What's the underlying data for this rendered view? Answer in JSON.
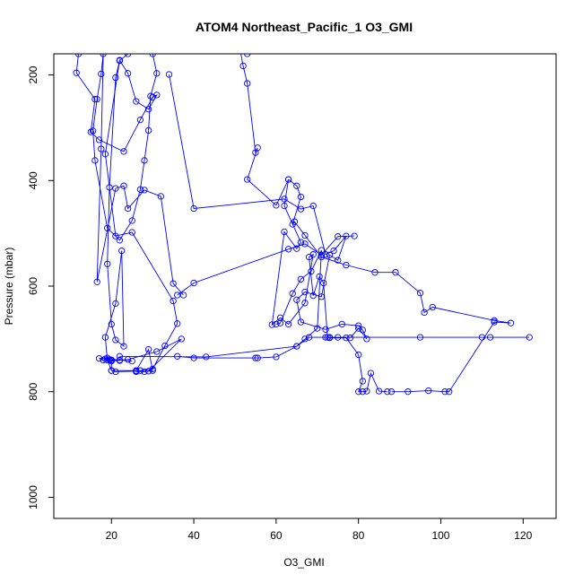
{
  "chart_data": {
    "type": "line",
    "title": "ATOM4 Northeast_Pacific_1 O3_GMI",
    "xlabel": "O3_GMI",
    "ylabel": "Pressure (mbar)",
    "xlim": [
      6,
      128
    ],
    "ylim": [
      1040,
      160
    ],
    "y_reversed": true,
    "grid": false,
    "xticks": [
      20,
      40,
      60,
      80,
      100,
      120
    ],
    "yticks": [
      200,
      400,
      600,
      800,
      1000
    ],
    "series_color": "#0000ff",
    "series": [
      {
        "x": [
          12,
          11.5,
          16,
          15,
          17,
          23,
          27,
          30,
          31,
          29,
          26,
          24,
          22,
          18.5,
          21,
          25,
          35,
          36,
          33,
          30,
          27,
          26,
          29,
          37,
          31,
          24,
          20,
          18.5,
          18,
          17,
          19,
          22,
          20,
          19.5
        ],
        "y": [
          160,
          196,
          246,
          308,
          323,
          345,
          285,
          242,
          238,
          265,
          250,
          197,
          172,
          350,
          505,
          498,
          628,
          671,
          713,
          757,
          760,
          762,
          761,
          700,
          724,
          739,
          742,
          738,
          740,
          737,
          736,
          741,
          740,
          739
        ]
      },
      {
        "x": [
          24,
          22,
          21,
          19.5,
          19,
          20,
          21,
          23,
          22.5,
          21,
          18.5,
          19,
          20,
          21,
          26,
          28,
          30,
          29,
          26,
          20,
          20,
          22,
          25
        ],
        "y": [
          160,
          173,
          205,
          413,
          558,
          672,
          702,
          714,
          533,
          633,
          697,
          740,
          760,
          762,
          761,
          762,
          760,
          720,
          760,
          760,
          740,
          740,
          742
        ]
      },
      {
        "x": [
          30,
          31,
          29.5,
          29,
          28,
          27,
          25,
          22,
          19,
          16,
          15.5,
          16.5,
          17.5,
          18,
          17.5,
          16.5,
          21,
          23,
          24,
          28,
          32,
          35,
          37.5
        ],
        "y": [
          160,
          197,
          240,
          305,
          362,
          417,
          476,
          513,
          490,
          362,
          306,
          246,
          198,
          160,
          340,
          592,
          415,
          410,
          453,
          418,
          430,
          595,
          617
        ]
      },
      {
        "x": [
          53,
          50,
          52,
          53,
          55,
          55.5,
          53,
          60,
          63,
          62,
          66,
          65,
          62,
          59,
          61,
          63,
          67,
          69,
          68,
          69,
          70.5,
          71.5,
          72.5,
          73,
          77,
          80,
          81,
          80,
          81,
          82,
          83,
          85,
          87
        ],
        "y": [
          160,
          100,
          183,
          216,
          347,
          338,
          398,
          447,
          398,
          448,
          517,
          529,
          497,
          673,
          660,
          672,
          632,
          540,
          545,
          618,
          582,
          594,
          697,
          698,
          698,
          730,
          780,
          800,
          800,
          799,
          765,
          799,
          800
        ]
      },
      {
        "x": [
          34,
          40,
          62,
          66,
          69,
          72,
          74,
          77,
          75,
          73,
          71,
          67,
          65,
          66,
          72,
          76,
          80,
          81,
          82,
          80,
          78
        ],
        "y": [
          199,
          453,
          435,
          454,
          448,
          540,
          533,
          505,
          551,
          541,
          620,
          611,
          626,
          668,
          682,
          672,
          675,
          683,
          700,
          680,
          698
        ]
      },
      {
        "x": [
          36,
          40,
          55,
          55.5,
          60,
          65,
          68,
          72,
          73,
          75,
          95,
          110,
          112,
          121.5
        ],
        "y": [
          733,
          736,
          736,
          736,
          734,
          714,
          697,
          697,
          697,
          697,
          697,
          697,
          697,
          697
        ]
      },
      {
        "x": [
          63,
          65,
          66,
          64,
          64.5,
          67,
          71,
          77,
          84,
          89,
          95,
          96,
          98,
          113,
          117,
          113,
          102,
          101,
          97,
          92,
          88
        ],
        "y": [
          398,
          410,
          431,
          483,
          478,
          504,
          545,
          560,
          574,
          574,
          613,
          650,
          640,
          665,
          670,
          668,
          800,
          800,
          798,
          800,
          800
        ]
      },
      {
        "x": [
          22,
          43,
          65,
          67,
          70,
          71,
          68.5,
          66,
          64,
          61,
          60
        ],
        "y": [
          733,
          734,
          714,
          700,
          680,
          532,
          572,
          587,
          614,
          670,
          672
        ]
      },
      {
        "x": [
          36,
          40,
          63,
          67,
          71,
          75,
          79
        ],
        "y": [
          617,
          594,
          530,
          520,
          541,
          506,
          505
        ]
      }
    ]
  }
}
